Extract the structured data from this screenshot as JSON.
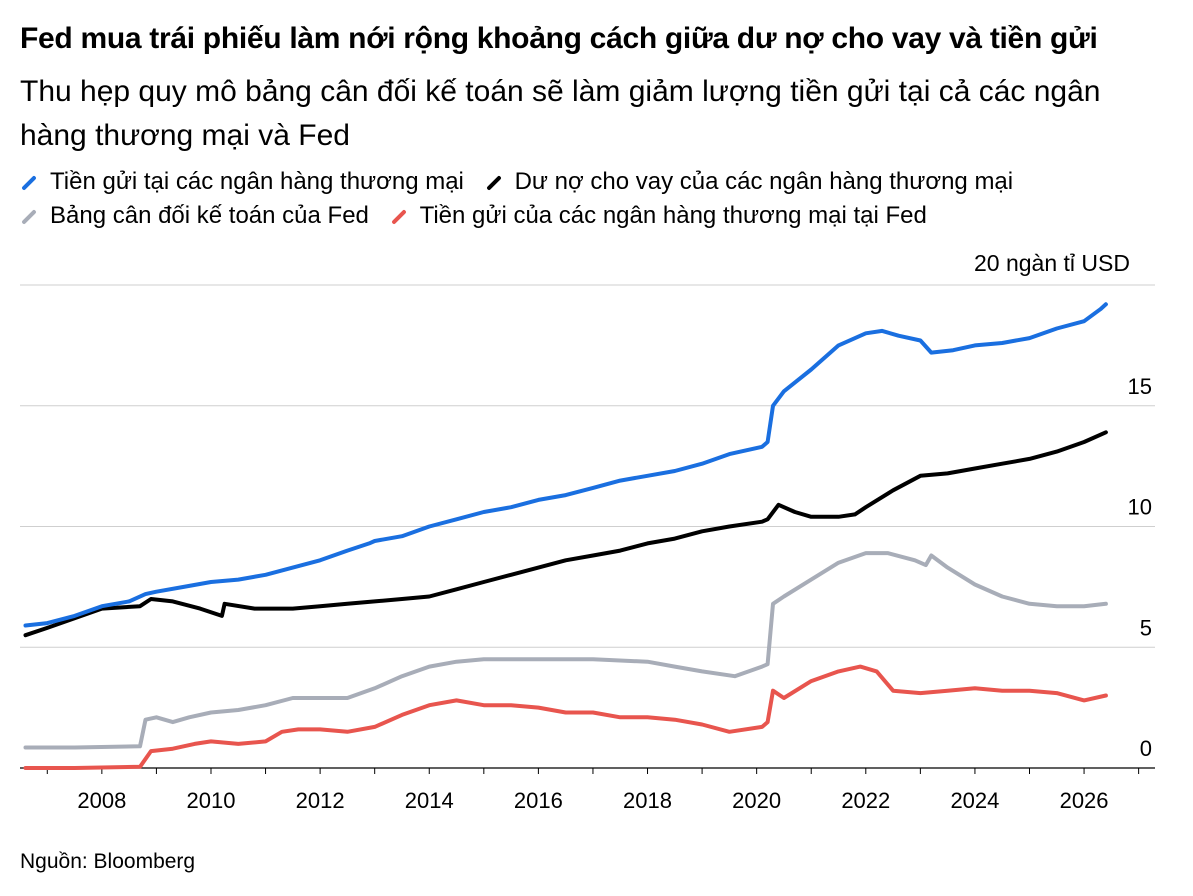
{
  "title": "Fed mua trái phiếu làm nới rộng khoảng cách giữa dư nợ cho vay và tiền gửi",
  "subtitle": "Thu hẹp quy mô bảng cân đối kế toán sẽ làm giảm lượng tiền gửi tại cả các ngân hàng thương mại và Fed",
  "source": "Nguồn: Bloomberg",
  "chart_data": {
    "type": "line",
    "unit_label": "20 ngàn tỉ USD",
    "ylim": [
      0,
      20
    ],
    "xlim": [
      2006.5,
      2027.3
    ],
    "y_ticks": [
      {
        "value": 15,
        "label": "15"
      },
      {
        "value": 10,
        "label": "10"
      },
      {
        "value": 5,
        "label": "5"
      },
      {
        "value": 0,
        "label": "0"
      }
    ],
    "x_ticks": [
      {
        "value": 2008,
        "label": "2008"
      },
      {
        "value": 2010,
        "label": "2010"
      },
      {
        "value": 2012,
        "label": "2012"
      },
      {
        "value": 2014,
        "label": "2014"
      },
      {
        "value": 2016,
        "label": "2016"
      },
      {
        "value": 2018,
        "label": "2018"
      },
      {
        "value": 2020,
        "label": "2020"
      },
      {
        "value": 2022,
        "label": "2022"
      },
      {
        "value": 2024,
        "label": "2024"
      },
      {
        "value": 2026,
        "label": "2026"
      }
    ],
    "grid": true,
    "legend_position": "top",
    "series": [
      {
        "name": "Tiền gửi tại các ngân hàng thương mại",
        "color": "#1a6fe0",
        "points": [
          [
            2006.6,
            5.9
          ],
          [
            2007.0,
            6.0
          ],
          [
            2007.5,
            6.3
          ],
          [
            2008.0,
            6.7
          ],
          [
            2008.5,
            6.9
          ],
          [
            2008.8,
            7.2
          ],
          [
            2009.0,
            7.3
          ],
          [
            2009.5,
            7.5
          ],
          [
            2010.0,
            7.7
          ],
          [
            2010.5,
            7.8
          ],
          [
            2011.0,
            8.0
          ],
          [
            2011.5,
            8.3
          ],
          [
            2012.0,
            8.6
          ],
          [
            2012.5,
            9.0
          ],
          [
            2012.9,
            9.3
          ],
          [
            2013.0,
            9.4
          ],
          [
            2013.5,
            9.6
          ],
          [
            2014.0,
            10.0
          ],
          [
            2014.5,
            10.3
          ],
          [
            2015.0,
            10.6
          ],
          [
            2015.5,
            10.8
          ],
          [
            2016.0,
            11.1
          ],
          [
            2016.5,
            11.3
          ],
          [
            2017.0,
            11.6
          ],
          [
            2017.5,
            11.9
          ],
          [
            2018.0,
            12.1
          ],
          [
            2018.5,
            12.3
          ],
          [
            2019.0,
            12.6
          ],
          [
            2019.5,
            13.0
          ],
          [
            2020.1,
            13.3
          ],
          [
            2020.2,
            13.5
          ],
          [
            2020.3,
            15.0
          ],
          [
            2020.5,
            15.6
          ],
          [
            2021.0,
            16.5
          ],
          [
            2021.5,
            17.5
          ],
          [
            2022.0,
            18.0
          ],
          [
            2022.3,
            18.1
          ],
          [
            2022.6,
            17.9
          ],
          [
            2023.0,
            17.7
          ],
          [
            2023.2,
            17.2
          ],
          [
            2023.6,
            17.3
          ],
          [
            2024.0,
            17.5
          ],
          [
            2024.5,
            17.6
          ],
          [
            2025.0,
            17.8
          ],
          [
            2025.5,
            18.2
          ],
          [
            2026.0,
            18.5
          ],
          [
            2026.3,
            19.0
          ],
          [
            2026.4,
            19.2
          ]
        ]
      },
      {
        "name": "Dư nợ cho vay của các ngân hàng thương mại",
        "color": "#000000",
        "points": [
          [
            2006.6,
            5.5
          ],
          [
            2007.0,
            5.8
          ],
          [
            2007.5,
            6.2
          ],
          [
            2008.0,
            6.6
          ],
          [
            2008.7,
            6.7
          ],
          [
            2008.9,
            7.0
          ],
          [
            2009.3,
            6.9
          ],
          [
            2009.8,
            6.6
          ],
          [
            2010.2,
            6.3
          ],
          [
            2010.25,
            6.8
          ],
          [
            2010.8,
            6.6
          ],
          [
            2011.5,
            6.6
          ],
          [
            2012.0,
            6.7
          ],
          [
            2012.5,
            6.8
          ],
          [
            2013.0,
            6.9
          ],
          [
            2013.5,
            7.0
          ],
          [
            2014.0,
            7.1
          ],
          [
            2014.5,
            7.4
          ],
          [
            2015.0,
            7.7
          ],
          [
            2015.5,
            8.0
          ],
          [
            2016.0,
            8.3
          ],
          [
            2016.5,
            8.6
          ],
          [
            2017.0,
            8.8
          ],
          [
            2017.5,
            9.0
          ],
          [
            2018.0,
            9.3
          ],
          [
            2018.5,
            9.5
          ],
          [
            2019.0,
            9.8
          ],
          [
            2019.5,
            10.0
          ],
          [
            2020.1,
            10.2
          ],
          [
            2020.2,
            10.3
          ],
          [
            2020.4,
            10.9
          ],
          [
            2020.7,
            10.6
          ],
          [
            2021.0,
            10.4
          ],
          [
            2021.5,
            10.4
          ],
          [
            2021.8,
            10.5
          ],
          [
            2022.0,
            10.8
          ],
          [
            2022.5,
            11.5
          ],
          [
            2023.0,
            12.1
          ],
          [
            2023.5,
            12.2
          ],
          [
            2024.0,
            12.4
          ],
          [
            2024.5,
            12.6
          ],
          [
            2025.0,
            12.8
          ],
          [
            2025.5,
            13.1
          ],
          [
            2026.0,
            13.5
          ],
          [
            2026.4,
            13.9
          ]
        ]
      },
      {
        "name": "Bảng cân đối kế toán của Fed",
        "color": "#a8adb8",
        "points": [
          [
            2006.6,
            0.85
          ],
          [
            2007.5,
            0.85
          ],
          [
            2008.7,
            0.9
          ],
          [
            2008.8,
            2.0
          ],
          [
            2009.0,
            2.1
          ],
          [
            2009.3,
            1.9
          ],
          [
            2009.6,
            2.1
          ],
          [
            2010.0,
            2.3
          ],
          [
            2010.5,
            2.4
          ],
          [
            2011.0,
            2.6
          ],
          [
            2011.5,
            2.9
          ],
          [
            2012.0,
            2.9
          ],
          [
            2012.5,
            2.9
          ],
          [
            2013.0,
            3.3
          ],
          [
            2013.5,
            3.8
          ],
          [
            2014.0,
            4.2
          ],
          [
            2014.5,
            4.4
          ],
          [
            2015.0,
            4.5
          ],
          [
            2016.0,
            4.5
          ],
          [
            2017.0,
            4.5
          ],
          [
            2018.0,
            4.4
          ],
          [
            2018.5,
            4.2
          ],
          [
            2019.0,
            4.0
          ],
          [
            2019.6,
            3.8
          ],
          [
            2020.1,
            4.2
          ],
          [
            2020.2,
            4.3
          ],
          [
            2020.3,
            6.8
          ],
          [
            2020.5,
            7.1
          ],
          [
            2021.0,
            7.8
          ],
          [
            2021.5,
            8.5
          ],
          [
            2022.0,
            8.9
          ],
          [
            2022.4,
            8.9
          ],
          [
            2022.9,
            8.6
          ],
          [
            2023.1,
            8.4
          ],
          [
            2023.2,
            8.8
          ],
          [
            2023.5,
            8.3
          ],
          [
            2024.0,
            7.6
          ],
          [
            2024.5,
            7.1
          ],
          [
            2025.0,
            6.8
          ],
          [
            2025.5,
            6.7
          ],
          [
            2026.0,
            6.7
          ],
          [
            2026.4,
            6.8
          ]
        ]
      },
      {
        "name": "Tiền gửi của các ngân hàng thương mại tại Fed",
        "color": "#e8554e",
        "points": [
          [
            2006.6,
            0.0
          ],
          [
            2007.5,
            0.0
          ],
          [
            2008.7,
            0.05
          ],
          [
            2008.9,
            0.7
          ],
          [
            2009.3,
            0.8
          ],
          [
            2009.7,
            1.0
          ],
          [
            2010.0,
            1.1
          ],
          [
            2010.5,
            1.0
          ],
          [
            2011.0,
            1.1
          ],
          [
            2011.3,
            1.5
          ],
          [
            2011.6,
            1.6
          ],
          [
            2012.0,
            1.6
          ],
          [
            2012.5,
            1.5
          ],
          [
            2013.0,
            1.7
          ],
          [
            2013.5,
            2.2
          ],
          [
            2014.0,
            2.6
          ],
          [
            2014.5,
            2.8
          ],
          [
            2015.0,
            2.6
          ],
          [
            2015.5,
            2.6
          ],
          [
            2016.0,
            2.5
          ],
          [
            2016.5,
            2.3
          ],
          [
            2017.0,
            2.3
          ],
          [
            2017.5,
            2.1
          ],
          [
            2018.0,
            2.1
          ],
          [
            2018.5,
            2.0
          ],
          [
            2019.0,
            1.8
          ],
          [
            2019.5,
            1.5
          ],
          [
            2020.1,
            1.7
          ],
          [
            2020.2,
            1.9
          ],
          [
            2020.3,
            3.2
          ],
          [
            2020.5,
            2.9
          ],
          [
            2021.0,
            3.6
          ],
          [
            2021.5,
            4.0
          ],
          [
            2021.9,
            4.2
          ],
          [
            2022.2,
            4.0
          ],
          [
            2022.5,
            3.2
          ],
          [
            2023.0,
            3.1
          ],
          [
            2023.5,
            3.2
          ],
          [
            2024.0,
            3.3
          ],
          [
            2024.5,
            3.2
          ],
          [
            2025.0,
            3.2
          ],
          [
            2025.5,
            3.1
          ],
          [
            2026.0,
            2.8
          ],
          [
            2026.4,
            3.0
          ]
        ]
      }
    ]
  }
}
